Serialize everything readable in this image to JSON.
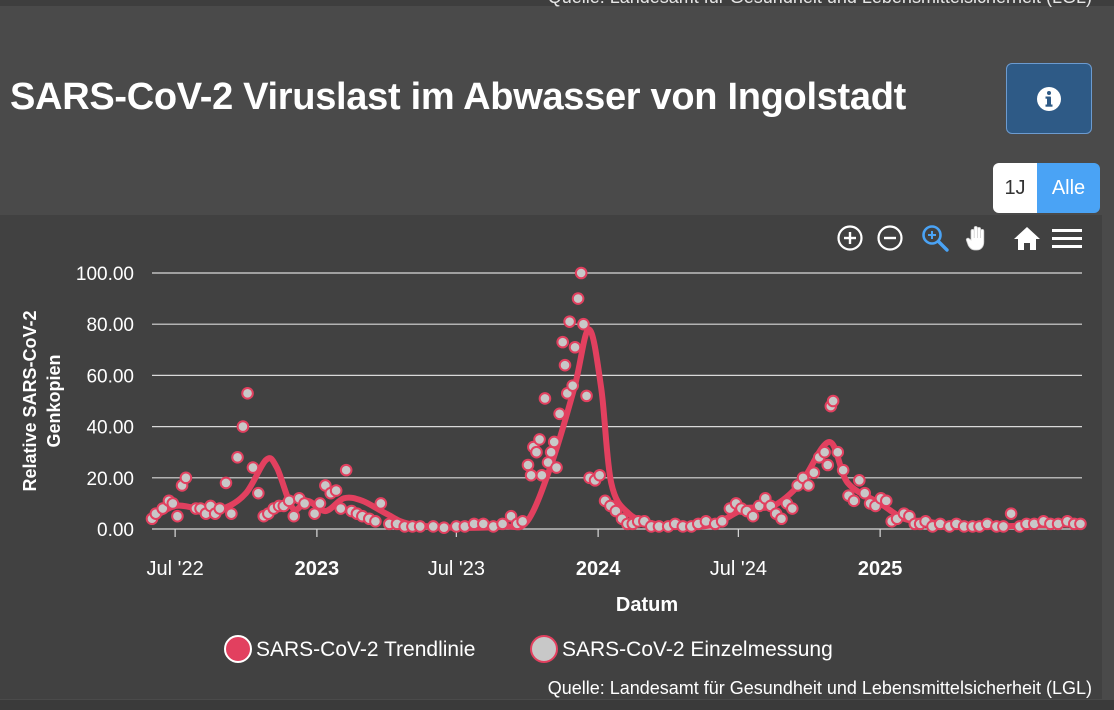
{
  "source_top": "Quelle: Landesamt für Gesundheit und Lebensmittelsicherheit (LGL)",
  "title": "SARS-CoV-2 Viruslast im Abwasser von Ingolstadt",
  "info_icon": "info-circle-icon",
  "range_buttons": {
    "one_year": "1J",
    "all": "Alle"
  },
  "toolbar": [
    "zoom-in-icon",
    "zoom-out-icon",
    "zoom-selection-icon",
    "pan-hand-icon",
    "home-icon",
    "menu-icon"
  ],
  "colors": {
    "trend": "#e2405f",
    "point_fill": "#c8c8c8",
    "point_stroke": "#e2405f",
    "accent": "#4aa3f5",
    "grid": "#d9d9d9"
  },
  "source_bottom": "Quelle: Landesamt für Gesundheit und Lebensmittelsicherheit (LGL)",
  "chart_data": {
    "type": "line",
    "title": "",
    "xlabel": "Datum",
    "ylabel": "Relative SARS-CoV-2 Genkopien",
    "ylim": [
      0,
      100
    ],
    "y_ticks": [
      "0.00",
      "20.00",
      "40.00",
      "60.00",
      "80.00",
      "100.00"
    ],
    "x_ticks": [
      {
        "date": "2022-07-01",
        "label": "Jul '22",
        "bold": false
      },
      {
        "date": "2023-01-01",
        "label": "2023",
        "bold": true
      },
      {
        "date": "2023-07-01",
        "label": "Jul '23",
        "bold": false
      },
      {
        "date": "2024-01-01",
        "label": "2024",
        "bold": true
      },
      {
        "date": "2024-07-01",
        "label": "Jul '24",
        "bold": false
      },
      {
        "date": "2025-01-01",
        "label": "2025",
        "bold": true
      }
    ],
    "xlim": [
      "2022-06-01",
      "2025-09-20"
    ],
    "grid": true,
    "legend_position": "bottom",
    "series": [
      {
        "name": "SARS-CoV-2 Trendlinie",
        "kind": "line",
        "points": [
          [
            "2022-06-01",
            4
          ],
          [
            "2022-07-01",
            9
          ],
          [
            "2022-08-01",
            8
          ],
          [
            "2022-09-01",
            8
          ],
          [
            "2022-10-01",
            14
          ],
          [
            "2022-10-27",
            27
          ],
          [
            "2022-11-10",
            24
          ],
          [
            "2022-12-01",
            8
          ],
          [
            "2022-12-20",
            11
          ],
          [
            "2023-01-12",
            7
          ],
          [
            "2023-02-05",
            12
          ],
          [
            "2023-03-01",
            11
          ],
          [
            "2023-04-01",
            6
          ],
          [
            "2023-05-01",
            2
          ],
          [
            "2023-07-01",
            0.5
          ],
          [
            "2023-09-01",
            1
          ],
          [
            "2023-10-01",
            3
          ],
          [
            "2023-11-01",
            25
          ],
          [
            "2023-12-01",
            55
          ],
          [
            "2023-12-20",
            78
          ],
          [
            "2024-01-05",
            55
          ],
          [
            "2024-01-18",
            18
          ],
          [
            "2024-02-10",
            6
          ],
          [
            "2024-03-15",
            2
          ],
          [
            "2024-05-01",
            1
          ],
          [
            "2024-06-01",
            2
          ],
          [
            "2024-07-10",
            8
          ],
          [
            "2024-08-15",
            9
          ],
          [
            "2024-09-20",
            18
          ],
          [
            "2024-10-27",
            34
          ],
          [
            "2024-11-20",
            18
          ],
          [
            "2025-01-01",
            10
          ],
          [
            "2025-02-01",
            4
          ],
          [
            "2025-03-01",
            3
          ],
          [
            "2025-04-15",
            1
          ],
          [
            "2025-06-01",
            1
          ],
          [
            "2025-09-20",
            2
          ]
        ]
      },
      {
        "name": "SARS-CoV-2 Einzelmessung",
        "kind": "scatter",
        "points": [
          [
            "2022-06-01",
            4
          ],
          [
            "2022-06-06",
            6
          ],
          [
            "2022-06-15",
            8
          ],
          [
            "2022-06-23",
            11
          ],
          [
            "2022-06-28",
            10
          ],
          [
            "2022-07-04",
            5
          ],
          [
            "2022-07-10",
            17
          ],
          [
            "2022-07-15",
            20
          ],
          [
            "2022-07-28",
            8
          ],
          [
            "2022-08-03",
            8
          ],
          [
            "2022-08-10",
            6
          ],
          [
            "2022-08-16",
            9
          ],
          [
            "2022-08-22",
            6
          ],
          [
            "2022-08-28",
            8
          ],
          [
            "2022-09-05",
            18
          ],
          [
            "2022-09-12",
            6
          ],
          [
            "2022-09-20",
            28
          ],
          [
            "2022-09-27",
            40
          ],
          [
            "2022-10-03",
            53
          ],
          [
            "2022-10-10",
            24
          ],
          [
            "2022-10-17",
            14
          ],
          [
            "2022-10-24",
            5
          ],
          [
            "2022-10-30",
            6
          ],
          [
            "2022-11-06",
            8
          ],
          [
            "2022-11-13",
            9
          ],
          [
            "2022-11-19",
            9
          ],
          [
            "2022-11-26",
            11
          ],
          [
            "2022-12-02",
            5
          ],
          [
            "2022-12-09",
            12
          ],
          [
            "2022-12-16",
            10
          ],
          [
            "2022-12-29",
            6
          ],
          [
            "2023-01-05",
            10
          ],
          [
            "2023-01-12",
            17
          ],
          [
            "2023-01-19",
            14
          ],
          [
            "2023-01-26",
            15
          ],
          [
            "2023-02-01",
            8
          ],
          [
            "2023-02-08",
            23
          ],
          [
            "2023-02-15",
            7
          ],
          [
            "2023-02-22",
            6
          ],
          [
            "2023-03-01",
            5
          ],
          [
            "2023-03-10",
            4
          ],
          [
            "2023-03-18",
            3
          ],
          [
            "2023-03-25",
            10
          ],
          [
            "2023-04-05",
            2
          ],
          [
            "2023-04-15",
            2
          ],
          [
            "2023-04-25",
            1
          ],
          [
            "2023-05-05",
            1
          ],
          [
            "2023-05-15",
            1
          ],
          [
            "2023-06-01",
            1
          ],
          [
            "2023-06-15",
            0.5
          ],
          [
            "2023-07-01",
            1
          ],
          [
            "2023-07-12",
            1
          ],
          [
            "2023-07-24",
            2
          ],
          [
            "2023-08-05",
            2
          ],
          [
            "2023-08-18",
            1
          ],
          [
            "2023-08-30",
            2
          ],
          [
            "2023-09-10",
            5
          ],
          [
            "2023-09-18",
            2
          ],
          [
            "2023-09-25",
            3
          ],
          [
            "2023-10-02",
            25
          ],
          [
            "2023-10-06",
            21
          ],
          [
            "2023-10-09",
            32
          ],
          [
            "2023-10-13",
            30
          ],
          [
            "2023-10-17",
            35
          ],
          [
            "2023-10-20",
            21
          ],
          [
            "2023-10-24",
            51
          ],
          [
            "2023-10-28",
            26
          ],
          [
            "2023-11-01",
            30
          ],
          [
            "2023-11-05",
            34
          ],
          [
            "2023-11-08",
            24
          ],
          [
            "2023-11-12",
            45
          ],
          [
            "2023-11-16",
            73
          ],
          [
            "2023-11-19",
            64
          ],
          [
            "2023-11-22",
            53
          ],
          [
            "2023-11-25",
            81
          ],
          [
            "2023-11-29",
            56
          ],
          [
            "2023-12-02",
            71
          ],
          [
            "2023-12-06",
            90
          ],
          [
            "2023-12-10",
            100
          ],
          [
            "2023-12-13",
            80
          ],
          [
            "2023-12-17",
            52
          ],
          [
            "2023-12-21",
            20
          ],
          [
            "2023-12-28",
            19
          ],
          [
            "2024-01-03",
            21
          ],
          [
            "2024-01-10",
            11
          ],
          [
            "2024-01-17",
            9
          ],
          [
            "2024-01-24",
            7
          ],
          [
            "2024-02-01",
            4
          ],
          [
            "2024-02-08",
            2
          ],
          [
            "2024-02-15",
            2
          ],
          [
            "2024-02-22",
            3
          ],
          [
            "2024-03-01",
            3
          ],
          [
            "2024-03-10",
            1
          ],
          [
            "2024-03-20",
            1
          ],
          [
            "2024-04-01",
            1
          ],
          [
            "2024-04-10",
            2
          ],
          [
            "2024-04-20",
            1
          ],
          [
            "2024-05-01",
            1
          ],
          [
            "2024-05-10",
            2
          ],
          [
            "2024-05-20",
            3
          ],
          [
            "2024-06-01",
            2
          ],
          [
            "2024-06-10",
            3
          ],
          [
            "2024-06-20",
            8
          ],
          [
            "2024-06-28",
            10
          ],
          [
            "2024-07-05",
            8
          ],
          [
            "2024-07-12",
            7
          ],
          [
            "2024-07-20",
            5
          ],
          [
            "2024-07-28",
            9
          ],
          [
            "2024-08-05",
            12
          ],
          [
            "2024-08-12",
            9
          ],
          [
            "2024-08-19",
            6
          ],
          [
            "2024-08-26",
            4
          ],
          [
            "2024-09-02",
            10
          ],
          [
            "2024-09-09",
            8
          ],
          [
            "2024-09-16",
            17
          ],
          [
            "2024-09-23",
            20
          ],
          [
            "2024-09-30",
            17
          ],
          [
            "2024-10-07",
            22
          ],
          [
            "2024-10-14",
            28
          ],
          [
            "2024-10-21",
            30
          ],
          [
            "2024-10-25",
            25
          ],
          [
            "2024-10-29",
            48
          ],
          [
            "2024-11-01",
            50
          ],
          [
            "2024-11-07",
            30
          ],
          [
            "2024-11-14",
            23
          ],
          [
            "2024-11-21",
            13
          ],
          [
            "2024-11-28",
            11
          ],
          [
            "2024-12-05",
            19
          ],
          [
            "2024-12-12",
            14
          ],
          [
            "2024-12-19",
            10
          ],
          [
            "2024-12-26",
            9
          ],
          [
            "2025-01-02",
            12
          ],
          [
            "2025-01-09",
            11
          ],
          [
            "2025-01-16",
            3
          ],
          [
            "2025-01-23",
            4
          ],
          [
            "2025-02-01",
            6
          ],
          [
            "2025-02-08",
            5
          ],
          [
            "2025-02-15",
            2
          ],
          [
            "2025-02-22",
            2
          ],
          [
            "2025-03-01",
            3
          ],
          [
            "2025-03-10",
            1
          ],
          [
            "2025-03-20",
            2
          ],
          [
            "2025-04-01",
            1
          ],
          [
            "2025-04-10",
            2
          ],
          [
            "2025-04-20",
            1
          ],
          [
            "2025-05-01",
            1
          ],
          [
            "2025-05-10",
            1
          ],
          [
            "2025-05-20",
            2
          ],
          [
            "2025-06-01",
            1
          ],
          [
            "2025-06-10",
            1
          ],
          [
            "2025-06-20",
            6
          ],
          [
            "2025-07-01",
            1
          ],
          [
            "2025-07-10",
            2
          ],
          [
            "2025-07-20",
            2
          ],
          [
            "2025-08-01",
            3
          ],
          [
            "2025-08-10",
            2
          ],
          [
            "2025-08-20",
            2
          ],
          [
            "2025-09-01",
            3
          ],
          [
            "2025-09-10",
            2
          ],
          [
            "2025-09-18",
            2
          ]
        ]
      }
    ]
  }
}
